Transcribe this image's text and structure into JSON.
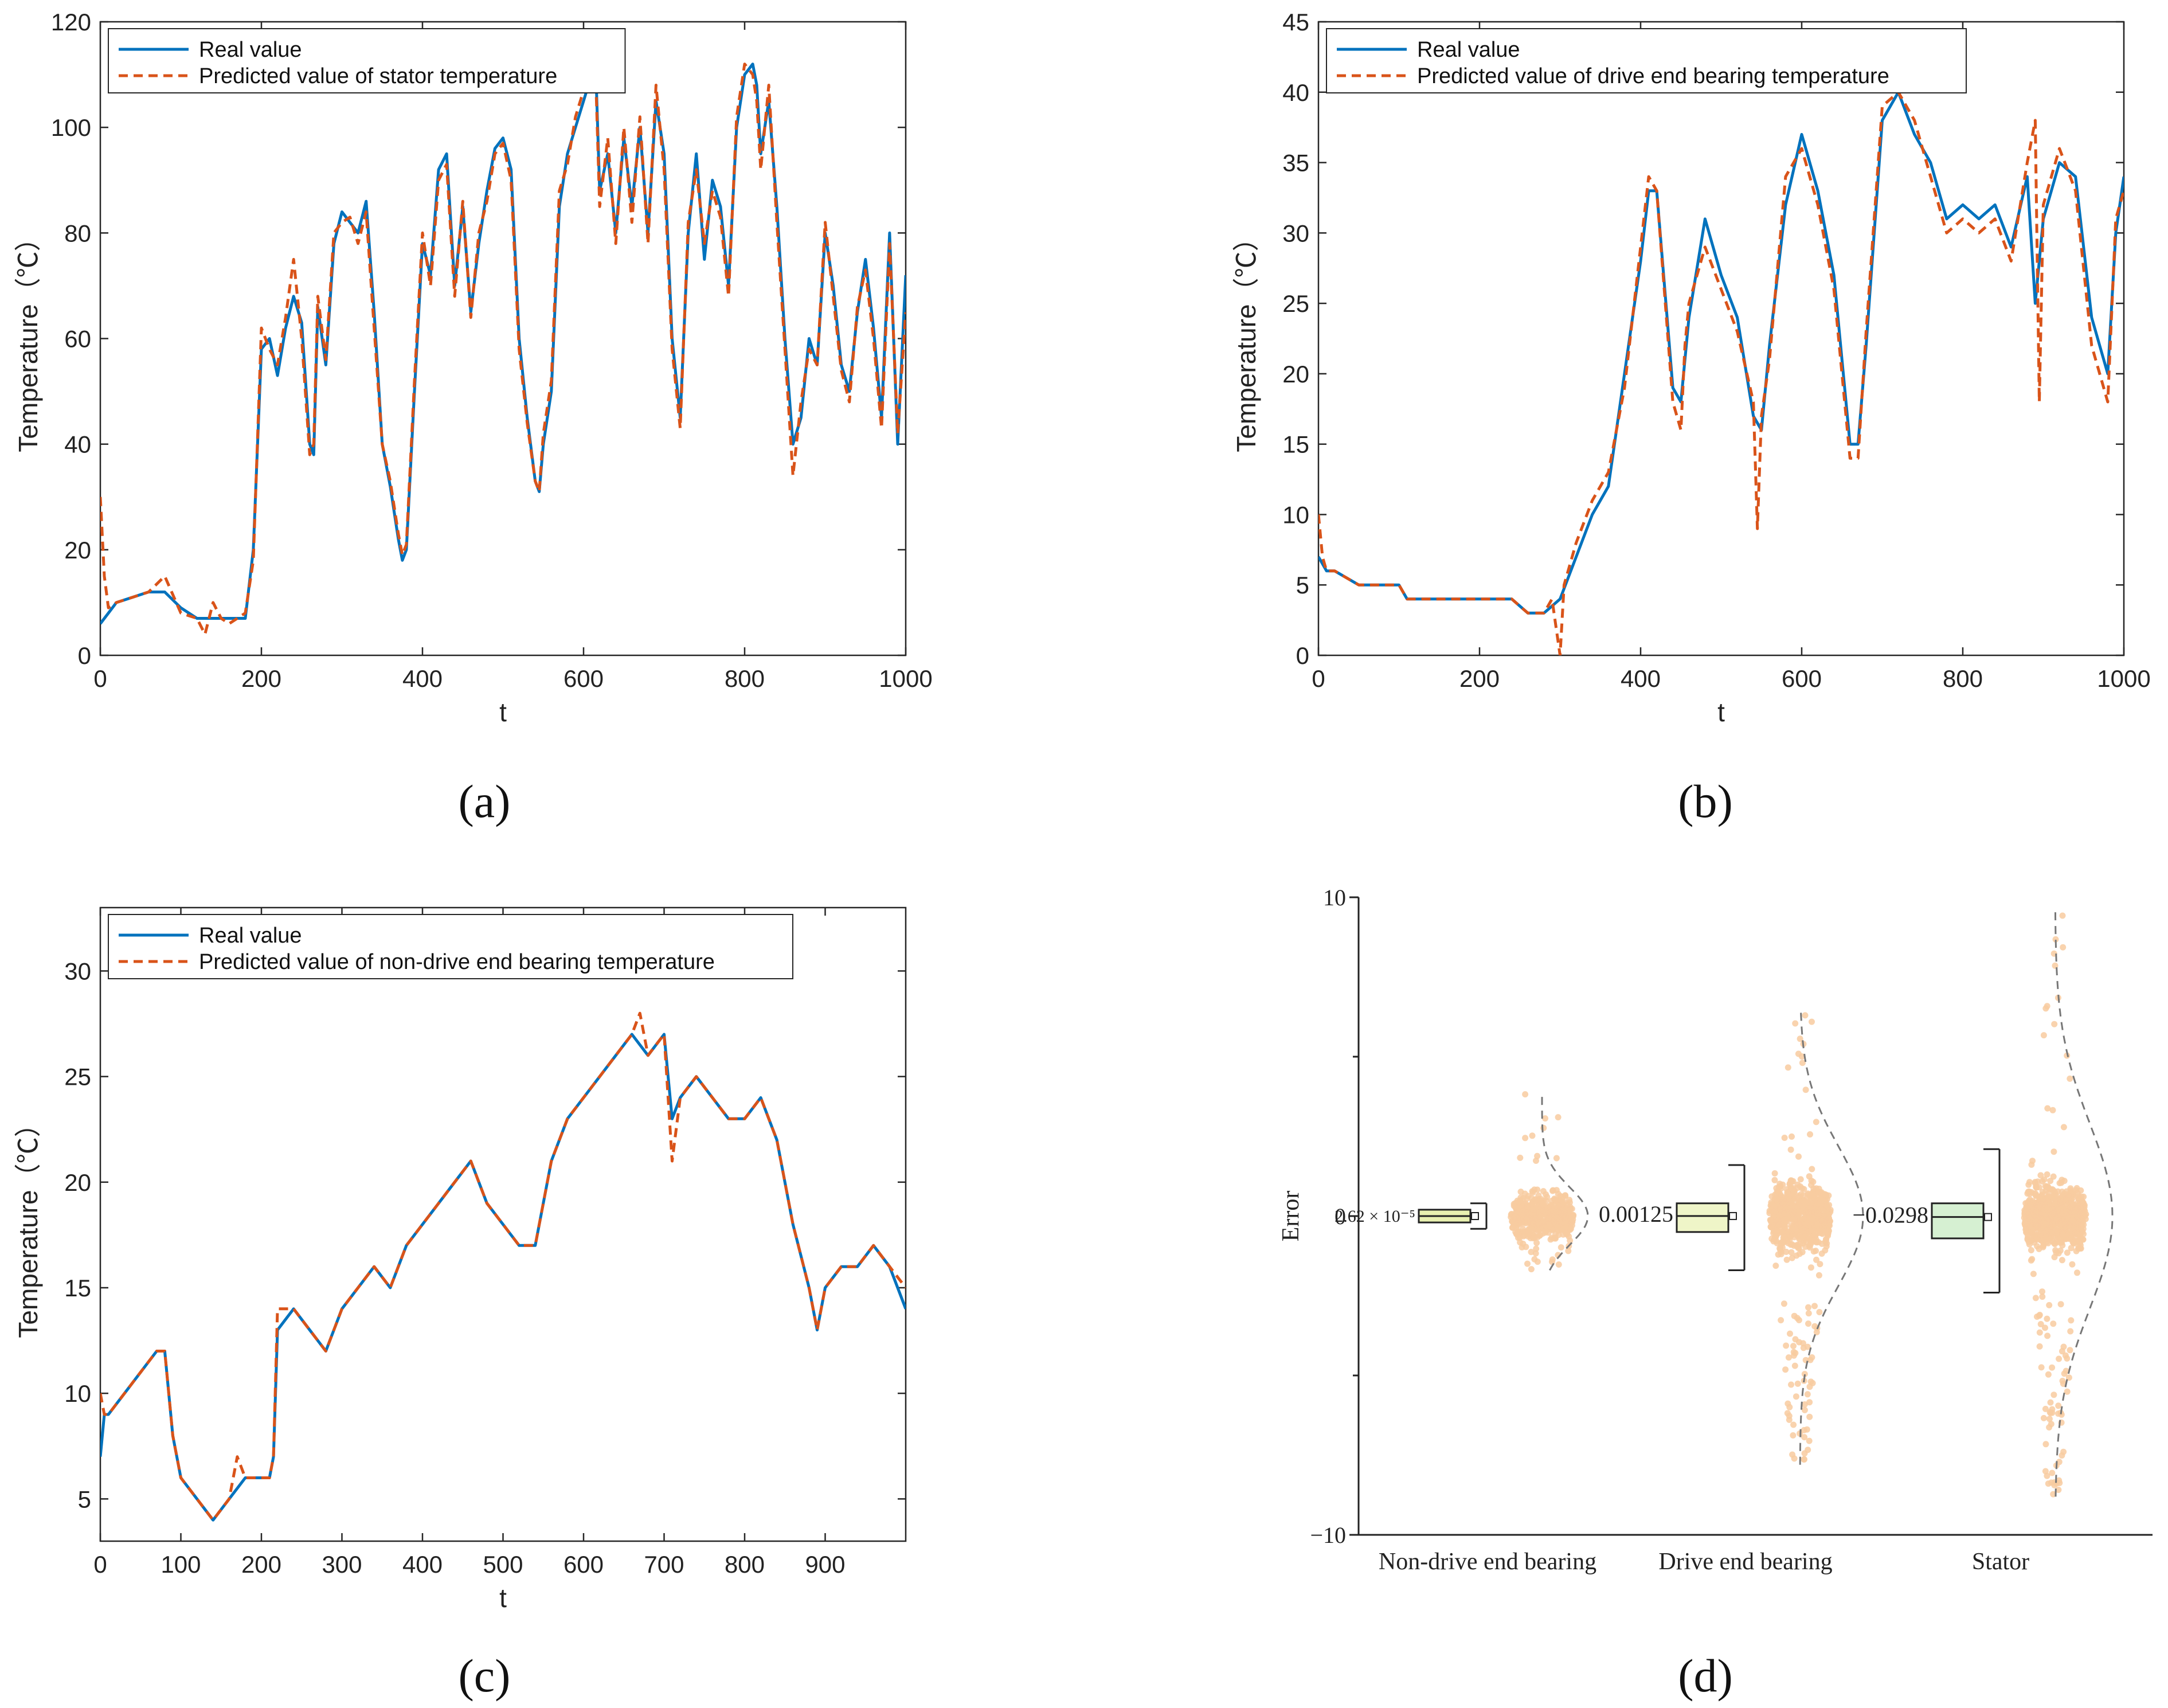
{
  "colors": {
    "real": "#0072BD",
    "predicted": "#D95319",
    "scatter": "#F8CBA0",
    "box_ndrive": "#E8F0B0",
    "box_drive": "#EFF5C8",
    "box_stator": "#D6F0D2",
    "curve": "#777777"
  },
  "chart_data": [
    {
      "id": "a",
      "label": "(a)",
      "type": "line",
      "xlabel": "t",
      "ylabel": "Temperature（℃）",
      "xlim": [
        0,
        1000
      ],
      "ylim": [
        0,
        120
      ],
      "xticks": [
        0,
        200,
        400,
        600,
        800,
        1000
      ],
      "yticks": [
        0,
        20,
        40,
        60,
        80,
        100,
        120
      ],
      "legend": [
        "Real value",
        "Predicted value of stator temperature"
      ],
      "legend_position": "top-left",
      "series": [
        {
          "name": "Real value",
          "x": [
            0,
            10,
            20,
            40,
            60,
            80,
            100,
            120,
            140,
            160,
            180,
            190,
            200,
            210,
            220,
            230,
            240,
            250,
            260,
            265,
            270,
            280,
            290,
            300,
            310,
            320,
            330,
            340,
            350,
            360,
            370,
            375,
            380,
            390,
            400,
            410,
            420,
            430,
            440,
            450,
            460,
            470,
            480,
            490,
            500,
            510,
            520,
            530,
            540,
            545,
            550,
            560,
            570,
            580,
            590,
            600,
            610,
            615,
            620,
            630,
            640,
            650,
            660,
            670,
            680,
            690,
            700,
            710,
            720,
            730,
            740,
            750,
            760,
            770,
            780,
            790,
            800,
            810,
            815,
            820,
            830,
            840,
            850,
            860,
            870,
            880,
            890,
            900,
            910,
            920,
            930,
            940,
            950,
            960,
            970,
            980,
            990,
            1000
          ],
          "values": [
            6,
            8,
            10,
            11,
            12,
            12,
            9,
            7,
            7,
            7,
            7,
            20,
            58,
            60,
            53,
            62,
            68,
            63,
            40,
            38,
            66,
            55,
            78,
            84,
            82,
            80,
            86,
            65,
            40,
            32,
            22,
            18,
            20,
            50,
            78,
            72,
            92,
            95,
            70,
            85,
            65,
            78,
            88,
            96,
            98,
            92,
            60,
            45,
            33,
            31,
            40,
            50,
            85,
            95,
            100,
            105,
            110,
            112,
            88,
            95,
            80,
            98,
            85,
            100,
            80,
            105,
            95,
            60,
            45,
            80,
            95,
            75,
            90,
            85,
            70,
            100,
            110,
            112,
            108,
            95,
            105,
            85,
            60,
            40,
            45,
            60,
            55,
            80,
            70,
            55,
            50,
            65,
            75,
            62,
            45,
            80,
            40,
            72
          ]
        },
        {
          "name": "Predicted value of stator temperature",
          "x": [
            0,
            5,
            10,
            20,
            40,
            60,
            80,
            100,
            120,
            130,
            140,
            150,
            160,
            180,
            190,
            200,
            210,
            220,
            230,
            240,
            250,
            260,
            265,
            270,
            280,
            290,
            300,
            310,
            320,
            330,
            340,
            350,
            360,
            370,
            375,
            380,
            390,
            400,
            410,
            420,
            430,
            440,
            450,
            460,
            470,
            480,
            490,
            500,
            510,
            520,
            530,
            540,
            545,
            550,
            560,
            570,
            580,
            590,
            600,
            610,
            615,
            620,
            630,
            640,
            650,
            660,
            670,
            680,
            690,
            700,
            710,
            720,
            730,
            740,
            750,
            760,
            770,
            780,
            790,
            800,
            810,
            815,
            820,
            830,
            840,
            850,
            860,
            870,
            880,
            890,
            900,
            910,
            920,
            930,
            940,
            950,
            960,
            970,
            980,
            990,
            1000
          ],
          "values": [
            30,
            15,
            9,
            10,
            11,
            12,
            15,
            8,
            7,
            4,
            10,
            7,
            6,
            8,
            18,
            62,
            58,
            55,
            64,
            75,
            60,
            38,
            40,
            68,
            56,
            80,
            82,
            83,
            78,
            84,
            62,
            40,
            33,
            23,
            19,
            21,
            52,
            80,
            70,
            90,
            93,
            68,
            86,
            64,
            80,
            86,
            95,
            97,
            90,
            58,
            44,
            33,
            31,
            42,
            52,
            88,
            93,
            102,
            107,
            108,
            110,
            85,
            98,
            78,
            100,
            82,
            102,
            78,
            108,
            92,
            58,
            43,
            82,
            92,
            78,
            88,
            83,
            68,
            102,
            112,
            110,
            105,
            92,
            108,
            82,
            58,
            34,
            48,
            58,
            55,
            82,
            68,
            54,
            48,
            66,
            73,
            60,
            43,
            78,
            42,
            65
          ]
        }
      ]
    },
    {
      "id": "b",
      "label": "(b)",
      "type": "line",
      "xlabel": "t",
      "ylabel": "Temperature（℃）",
      "xlim": [
        0,
        1000
      ],
      "ylim": [
        0,
        45
      ],
      "xticks": [
        0,
        200,
        400,
        600,
        800,
        1000
      ],
      "yticks": [
        0,
        5,
        10,
        15,
        20,
        25,
        30,
        35,
        40,
        45
      ],
      "legend": [
        "Real value",
        "Predicted value of drive end bearing temperature"
      ],
      "legend_position": "top-left",
      "series": [
        {
          "name": "Real value",
          "x": [
            0,
            10,
            20,
            50,
            60,
            100,
            110,
            200,
            240,
            260,
            280,
            300,
            320,
            340,
            360,
            380,
            400,
            410,
            420,
            440,
            450,
            460,
            480,
            500,
            520,
            540,
            550,
            560,
            580,
            600,
            620,
            640,
            660,
            670,
            680,
            700,
            720,
            740,
            760,
            780,
            800,
            820,
            840,
            860,
            880,
            890,
            900,
            920,
            940,
            960,
            980,
            990,
            1000
          ],
          "values": [
            7,
            6,
            6,
            5,
            5,
            5,
            4,
            4,
            4,
            3,
            3,
            4,
            7,
            10,
            12,
            20,
            28,
            33,
            33,
            19,
            18,
            24,
            31,
            27,
            24,
            17,
            16,
            22,
            32,
            37,
            33,
            27,
            15,
            15,
            22,
            38,
            40,
            37,
            35,
            31,
            32,
            31,
            32,
            29,
            34,
            25,
            31,
            35,
            34,
            24,
            20,
            30,
            34
          ]
        },
        {
          "name": "Predicted value of drive end bearing temperature",
          "x": [
            0,
            5,
            10,
            20,
            50,
            60,
            100,
            110,
            200,
            240,
            260,
            280,
            290,
            300,
            305,
            320,
            340,
            360,
            380,
            400,
            410,
            420,
            440,
            450,
            455,
            460,
            480,
            500,
            520,
            540,
            545,
            550,
            560,
            580,
            600,
            620,
            640,
            660,
            670,
            680,
            700,
            720,
            740,
            760,
            780,
            800,
            820,
            840,
            860,
            880,
            890,
            895,
            900,
            920,
            940,
            960,
            980,
            990,
            1000
          ],
          "values": [
            10,
            7,
            6,
            6,
            5,
            5,
            5,
            4,
            4,
            4,
            3,
            3,
            4,
            0,
            5,
            8,
            11,
            13,
            19,
            29,
            34,
            33,
            18,
            16,
            22,
            25,
            29,
            26,
            23,
            18,
            9,
            17,
            21,
            34,
            36,
            32,
            26,
            14,
            14,
            23,
            39,
            40,
            38,
            34,
            30,
            31,
            30,
            31,
            28,
            35,
            38,
            18,
            32,
            36,
            33,
            22,
            18,
            31,
            33
          ]
        }
      ]
    },
    {
      "id": "c",
      "label": "(c)",
      "type": "line",
      "xlabel": "t",
      "ylabel": "Temperature（℃）",
      "xlim": [
        0,
        1000
      ],
      "ylim": [
        3,
        33
      ],
      "xticks": [
        0,
        100,
        200,
        300,
        400,
        500,
        600,
        700,
        800,
        900
      ],
      "yticks": [
        5,
        10,
        15,
        20,
        25,
        30
      ],
      "legend": [
        "Real value",
        "Predicted value of non-drive end bearing temperature"
      ],
      "legend_position": "top-left",
      "series": [
        {
          "name": "Real value",
          "x": [
            0,
            5,
            10,
            30,
            50,
            70,
            80,
            90,
            100,
            120,
            140,
            160,
            180,
            200,
            210,
            215,
            220,
            240,
            260,
            280,
            300,
            320,
            340,
            360,
            380,
            400,
            420,
            440,
            460,
            480,
            500,
            520,
            540,
            560,
            580,
            600,
            620,
            640,
            660,
            680,
            700,
            710,
            720,
            740,
            760,
            780,
            800,
            820,
            840,
            860,
            880,
            890,
            900,
            920,
            940,
            960,
            980,
            1000
          ],
          "values": [
            7,
            9,
            9,
            10,
            11,
            12,
            12,
            8,
            6,
            5,
            4,
            5,
            6,
            6,
            6,
            7,
            13,
            14,
            13,
            12,
            14,
            15,
            16,
            15,
            17,
            18,
            19,
            20,
            21,
            19,
            18,
            17,
            17,
            21,
            23,
            24,
            25,
            26,
            27,
            26,
            27,
            23,
            24,
            25,
            24,
            23,
            23,
            24,
            22,
            18,
            15,
            13,
            15,
            16,
            16,
            17,
            16,
            14
          ]
        },
        {
          "name": "Predicted value of non-drive end bearing temperature",
          "x": [
            0,
            5,
            10,
            30,
            50,
            70,
            80,
            90,
            100,
            120,
            140,
            160,
            170,
            180,
            200,
            210,
            215,
            220,
            240,
            260,
            280,
            300,
            320,
            340,
            360,
            380,
            400,
            420,
            440,
            460,
            480,
            500,
            520,
            540,
            560,
            580,
            600,
            620,
            640,
            660,
            670,
            680,
            700,
            710,
            720,
            740,
            760,
            780,
            800,
            820,
            840,
            860,
            880,
            890,
            900,
            920,
            940,
            960,
            980,
            1000
          ],
          "values": [
            10,
            9,
            9,
            10,
            11,
            12,
            12,
            8,
            6,
            5,
            4,
            5,
            7,
            6,
            6,
            6,
            7,
            14,
            14,
            13,
            12,
            14,
            15,
            16,
            15,
            17,
            18,
            19,
            20,
            21,
            19,
            18,
            17,
            17,
            21,
            23,
            24,
            25,
            26,
            27,
            28,
            26,
            27,
            21,
            24,
            25,
            24,
            23,
            23,
            24,
            22,
            18,
            15,
            13,
            15,
            16,
            16,
            17,
            16,
            15
          ]
        }
      ]
    },
    {
      "id": "d",
      "label": "(d)",
      "type": "box",
      "ylabel": "Error",
      "ylim": [
        -10,
        10
      ],
      "yticks": [
        -10,
        0,
        10
      ],
      "categories": [
        "Non-drive end bearing",
        "Drive end bearing",
        "Stator"
      ],
      "mean_labels": [
        "2.62 × 10⁻⁵",
        "0.00125",
        "−0.0298"
      ],
      "boxes": [
        {
          "mean": 2.62e-05,
          "q1": -0.2,
          "q3": 0.2,
          "whisker_low": -0.4,
          "whisker_high": 0.4,
          "scatter_min": -1.7,
          "scatter_max": 3.9
        },
        {
          "mean": 0.00125,
          "q1": -0.5,
          "q3": 0.4,
          "whisker_low": -1.7,
          "whisker_high": 1.6,
          "scatter_min": -7.8,
          "scatter_max": 6.5
        },
        {
          "mean": -0.0298,
          "q1": -0.7,
          "q3": 0.4,
          "whisker_low": -2.4,
          "whisker_high": 2.1,
          "scatter_min": -8.8,
          "scatter_max": 9.6
        }
      ]
    }
  ]
}
